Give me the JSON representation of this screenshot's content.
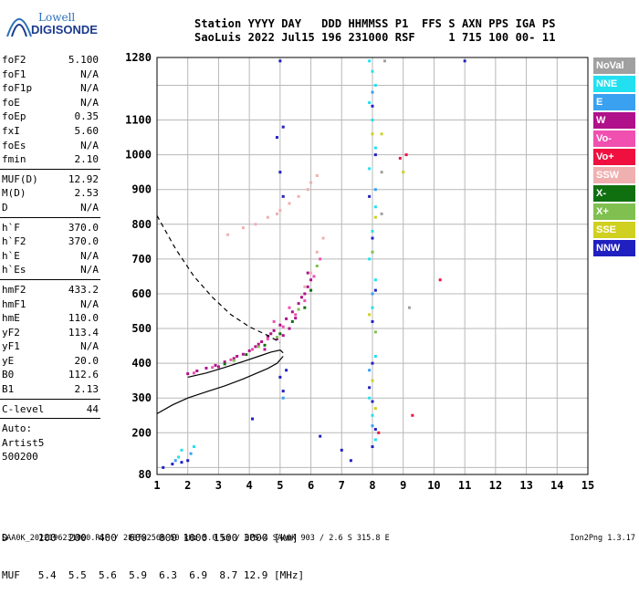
{
  "logo": {
    "brand_top": "Lowell",
    "brand_bottom": "DIGISONDE"
  },
  "header": {
    "labels": "Station YYYY DAY   DDD HHMMSS P1  FFS S AXN PPS IGA PS",
    "values": "SaoLuis 2022 Jul15 196 231000 RSF     1 715 100 00- 11"
  },
  "params_a": [
    {
      "label": "foF2",
      "value": "5.100"
    },
    {
      "label": "foF1",
      "value": "N/A"
    },
    {
      "label": "foF1p",
      "value": "N/A"
    },
    {
      "label": "foE",
      "value": "N/A"
    },
    {
      "label": "foEp",
      "value": "0.35"
    },
    {
      "label": "fxI",
      "value": "5.60"
    },
    {
      "label": "foEs",
      "value": "N/A"
    },
    {
      "label": "fmin",
      "value": "2.10"
    }
  ],
  "params_b": [
    {
      "label": "MUF(D)",
      "value": "12.92"
    },
    {
      "label": "M(D)",
      "value": "2.53"
    },
    {
      "label": "D",
      "value": "N/A"
    }
  ],
  "params_c": [
    {
      "label": "h`F",
      "value": "370.0"
    },
    {
      "label": "h`F2",
      "value": "370.0"
    },
    {
      "label": "h`E",
      "value": "N/A"
    },
    {
      "label": "h`Es",
      "value": "N/A"
    }
  ],
  "params_d": [
    {
      "label": "hmF2",
      "value": "433.2"
    },
    {
      "label": "hmF1",
      "value": "N/A"
    },
    {
      "label": "hmE",
      "value": "110.0"
    },
    {
      "label": "yF2",
      "value": "113.4"
    },
    {
      "label": "yF1",
      "value": "N/A"
    },
    {
      "label": "yE",
      "value": "20.0"
    },
    {
      "label": "B0",
      "value": "112.6"
    },
    {
      "label": "B1",
      "value": "2.13"
    }
  ],
  "clevel": {
    "label": "C-level",
    "value": "44"
  },
  "auto": {
    "line1": "Auto:",
    "line2": "Artist5",
    "line3": "500200"
  },
  "legend": [
    {
      "label": "NoVal",
      "color": "#a0a0a0"
    },
    {
      "label": "NNE",
      "color": "#22e0f0"
    },
    {
      "label": "E",
      "color": "#3aa0f0"
    },
    {
      "label": "W",
      "color": "#b0108a"
    },
    {
      "label": "Vo-",
      "color": "#f050b0"
    },
    {
      "label": "Vo+",
      "color": "#f01040"
    },
    {
      "label": "SSW",
      "color": "#f0b0b0"
    },
    {
      "label": "X-",
      "color": "#107010"
    },
    {
      "label": "X+",
      "color": "#80c050"
    },
    {
      "label": "SSE",
      "color": "#d0d020"
    },
    {
      "label": "NNW",
      "color": "#2020c0"
    }
  ],
  "bottom": {
    "d_row": "D     100  200  400  600  800 1000 1500 3000 [km]",
    "muf_row": "MUF   5.4  5.5  5.6  5.9  6.3  6.9  8.7 12.9 [MHz]"
  },
  "footer": {
    "left": "SAA0K_2022196231000.RSF / 280fx256h 50 kHz 5.0 km / DPS-4 SAA0K 903 / 2.6 S 315.8 E",
    "right": "Ion2Png 1.3.17"
  },
  "chart_data": {
    "type": "scatter",
    "title": "",
    "xlabel": "",
    "ylabel": "",
    "xlim": [
      1,
      15
    ],
    "ylim": [
      80,
      1280
    ],
    "x_ticks": [
      1,
      2,
      3,
      4,
      5,
      6,
      7,
      8,
      9,
      10,
      11,
      12,
      13,
      14,
      15
    ],
    "y_ticks": [
      80,
      100,
      200,
      300,
      400,
      500,
      600,
      700,
      800,
      900,
      1000,
      1100,
      1200,
      1280
    ],
    "y_tick_labels": [
      "80",
      "",
      "200",
      "300",
      "400",
      "500",
      "600",
      "700",
      "800",
      "900",
      "1000",
      "1100",
      "",
      "1280"
    ],
    "grid": true,
    "series": [
      {
        "name": "W",
        "color": "#b0108a",
        "points": [
          [
            2.0,
            370
          ],
          [
            2.3,
            378
          ],
          [
            2.6,
            386
          ],
          [
            2.9,
            394
          ],
          [
            3.2,
            404
          ],
          [
            3.5,
            414
          ],
          [
            3.8,
            426
          ],
          [
            4.0,
            436
          ],
          [
            4.2,
            448
          ],
          [
            4.4,
            462
          ],
          [
            4.6,
            478
          ],
          [
            4.8,
            494
          ],
          [
            5.0,
            510
          ],
          [
            5.2,
            528
          ],
          [
            5.4,
            548
          ],
          [
            5.6,
            572
          ],
          [
            5.8,
            600
          ],
          [
            5.9,
            620
          ],
          [
            6.0,
            640
          ],
          [
            5.1,
            480
          ],
          [
            4.5,
            440
          ],
          [
            4.9,
            470
          ],
          [
            5.3,
            500
          ],
          [
            5.5,
            530
          ],
          [
            3.0,
            390
          ],
          [
            3.6,
            420
          ],
          [
            5.7,
            590
          ],
          [
            4.3,
            455
          ],
          [
            4.7,
            485
          ],
          [
            5.9,
            660
          ]
        ]
      },
      {
        "name": "Vo-",
        "color": "#f050b0",
        "points": [
          [
            2.2,
            372
          ],
          [
            2.8,
            388
          ],
          [
            3.4,
            410
          ],
          [
            4.1,
            440
          ],
          [
            4.6,
            470
          ],
          [
            5.1,
            505
          ],
          [
            5.5,
            540
          ],
          [
            5.8,
            580
          ],
          [
            6.1,
            650
          ],
          [
            6.3,
            700
          ],
          [
            4.8,
            520
          ],
          [
            5.3,
            560
          ]
        ]
      },
      {
        "name": "X-",
        "color": "#107010",
        "points": [
          [
            3.2,
            398
          ],
          [
            3.9,
            425
          ],
          [
            4.5,
            452
          ],
          [
            5.0,
            485
          ],
          [
            5.4,
            520
          ],
          [
            5.8,
            560
          ],
          [
            6.0,
            610
          ]
        ]
      },
      {
        "name": "X+",
        "color": "#80c050",
        "points": [
          [
            3.5,
            408
          ],
          [
            4.3,
            448
          ],
          [
            4.9,
            475
          ],
          [
            5.6,
            555
          ],
          [
            6.2,
            680
          ],
          [
            8.1,
            490
          ],
          [
            8.0,
            720
          ]
        ]
      },
      {
        "name": "SSW",
        "color": "#f0b0b0",
        "points": [
          [
            3.3,
            770
          ],
          [
            3.8,
            790
          ],
          [
            4.2,
            800
          ],
          [
            4.6,
            820
          ],
          [
            5.0,
            840
          ],
          [
            5.3,
            860
          ],
          [
            5.6,
            880
          ],
          [
            5.9,
            900
          ],
          [
            6.0,
            920
          ],
          [
            6.2,
            940
          ],
          [
            5.8,
            620
          ],
          [
            6.0,
            660
          ],
          [
            6.2,
            720
          ],
          [
            6.4,
            760
          ],
          [
            4.9,
            830
          ]
        ]
      },
      {
        "name": "NNE",
        "color": "#22e0f0",
        "points": [
          [
            7.9,
            1270
          ],
          [
            8.0,
            1240
          ],
          [
            8.1,
            1200
          ],
          [
            7.9,
            1150
          ],
          [
            8.0,
            1100
          ],
          [
            8.1,
            1020
          ],
          [
            7.9,
            960
          ],
          [
            8.1,
            850
          ],
          [
            8.0,
            780
          ],
          [
            7.9,
            700
          ],
          [
            8.1,
            640
          ],
          [
            8.0,
            560
          ],
          [
            8.1,
            420
          ],
          [
            7.9,
            300
          ],
          [
            8.0,
            250
          ],
          [
            8.1,
            180
          ],
          [
            1.8,
            150
          ],
          [
            2.2,
            160
          ],
          [
            1.7,
            130
          ]
        ]
      },
      {
        "name": "E",
        "color": "#3aa0f0",
        "points": [
          [
            8.0,
            1180
          ],
          [
            8.1,
            900
          ],
          [
            8.0,
            600
          ],
          [
            7.9,
            380
          ],
          [
            8.0,
            220
          ],
          [
            2.1,
            140
          ],
          [
            1.6,
            120
          ],
          [
            5.1,
            300
          ]
        ]
      },
      {
        "name": "NNW",
        "color": "#2020c0",
        "points": [
          [
            5.0,
            1270
          ],
          [
            5.1,
            1080
          ],
          [
            4.9,
            1050
          ],
          [
            5.0,
            950
          ],
          [
            5.1,
            880
          ],
          [
            8.0,
            1140
          ],
          [
            8.1,
            1000
          ],
          [
            7.9,
            880
          ],
          [
            8.0,
            760
          ],
          [
            8.1,
            610
          ],
          [
            8.0,
            520
          ],
          [
            8.0,
            400
          ],
          [
            7.9,
            330
          ],
          [
            8.0,
            290
          ],
          [
            8.1,
            210
          ],
          [
            8.0,
            160
          ],
          [
            1.2,
            100
          ],
          [
            1.5,
            110
          ],
          [
            1.8,
            115
          ],
          [
            2.0,
            120
          ],
          [
            5.0,
            360
          ],
          [
            5.1,
            320
          ],
          [
            5.2,
            380
          ],
          [
            11.0,
            1270
          ],
          [
            6.3,
            190
          ],
          [
            7.3,
            120
          ],
          [
            7.0,
            150
          ],
          [
            4.1,
            240
          ]
        ]
      },
      {
        "name": "SSE",
        "color": "#d0d020",
        "points": [
          [
            8.0,
            1060
          ],
          [
            8.1,
            820
          ],
          [
            7.9,
            540
          ],
          [
            8.0,
            350
          ],
          [
            8.1,
            270
          ],
          [
            8.3,
            1060
          ],
          [
            9.0,
            950
          ]
        ]
      },
      {
        "name": "Vo+",
        "color": "#f01040",
        "points": [
          [
            8.9,
            990
          ],
          [
            9.1,
            1000
          ],
          [
            10.2,
            640
          ],
          [
            9.3,
            250
          ],
          [
            8.2,
            200
          ]
        ]
      },
      {
        "name": "NoVal",
        "color": "#a0a0a0",
        "points": [
          [
            8.4,
            1270
          ],
          [
            8.3,
            950
          ],
          [
            9.2,
            560
          ],
          [
            8.3,
            830
          ]
        ]
      }
    ],
    "lines": [
      {
        "name": "dashed",
        "dash": true,
        "points": [
          [
            1.0,
            825
          ],
          [
            1.6,
            730
          ],
          [
            2.2,
            650
          ],
          [
            2.8,
            590
          ],
          [
            3.4,
            540
          ],
          [
            4.0,
            505
          ],
          [
            4.6,
            480
          ],
          [
            5.0,
            460
          ]
        ]
      },
      {
        "name": "solid-upper",
        "dash": false,
        "points": [
          [
            2.0,
            360
          ],
          [
            2.6,
            372
          ],
          [
            3.2,
            388
          ],
          [
            3.8,
            405
          ],
          [
            4.3,
            420
          ],
          [
            4.7,
            432
          ],
          [
            5.0,
            438
          ],
          [
            5.1,
            430
          ]
        ]
      },
      {
        "name": "solid-lower",
        "dash": false,
        "points": [
          [
            1.0,
            255
          ],
          [
            1.5,
            280
          ],
          [
            2.0,
            300
          ],
          [
            2.6,
            318
          ],
          [
            3.2,
            335
          ],
          [
            3.8,
            355
          ],
          [
            4.2,
            370
          ],
          [
            4.6,
            385
          ],
          [
            4.9,
            400
          ],
          [
            5.1,
            420
          ]
        ]
      }
    ]
  }
}
